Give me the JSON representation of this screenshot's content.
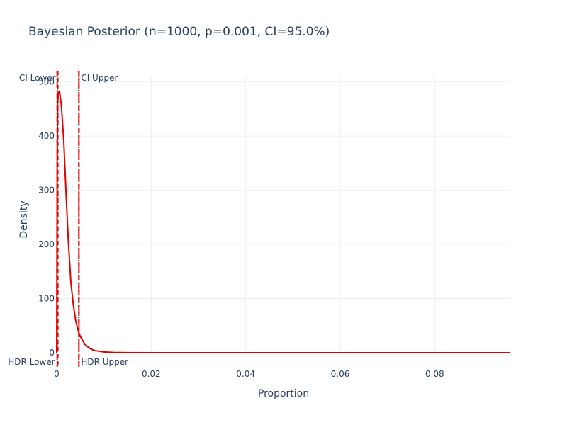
{
  "chart_data": {
    "type": "line",
    "title": "Bayesian Posterior (n=1000, p=0.001, CI=95.0%)",
    "xlabel": "Proportion",
    "ylabel": "Density",
    "xlim": [
      0,
      0.096
    ],
    "ylim": [
      0,
      510
    ],
    "x_ticks": [
      0,
      0.02,
      0.04,
      0.06,
      0.08
    ],
    "x_tick_labels": [
      "0",
      "0.02",
      "0.04",
      "0.06",
      "0.08"
    ],
    "y_ticks": [
      0,
      100,
      200,
      300,
      400,
      500
    ],
    "y_tick_labels": [
      "0",
      "100",
      "200",
      "300",
      "400",
      "500"
    ],
    "grid": true,
    "line_color": "#e00000",
    "series": [
      {
        "x": [
          0,
          0.0001,
          0.0002,
          0.0004,
          0.0006,
          0.0008,
          0.001,
          0.0012,
          0.0015,
          0.0018,
          0.002,
          0.0025,
          0.003,
          0.0035,
          0.004,
          0.0045,
          0.005,
          0.006,
          0.007,
          0.008,
          0.01,
          0.012,
          0.015,
          0.02,
          0.03,
          0.05,
          0.096
        ],
        "y": [
          0,
          350,
          460,
          482,
          483,
          470,
          455,
          430,
          390,
          330,
          290,
          200,
          130,
          90,
          60,
          42,
          30,
          15,
          8,
          4,
          1.5,
          0.5,
          0.2,
          0,
          0,
          0,
          0
        ]
      }
    ],
    "vlines": [
      {
        "x": 0.00024,
        "style": "dash",
        "top_label": "CI Lower",
        "bottom_label": ""
      },
      {
        "x": 0.0047,
        "style": "dash",
        "top_label": "CI Upper",
        "bottom_label": ""
      },
      {
        "x": 0.0001,
        "style": "dashdot",
        "top_label": "",
        "bottom_label": "HDR Lower"
      },
      {
        "x": 0.0047,
        "style": "dashdot",
        "top_label": "",
        "bottom_label": "HDR Upper"
      }
    ]
  }
}
